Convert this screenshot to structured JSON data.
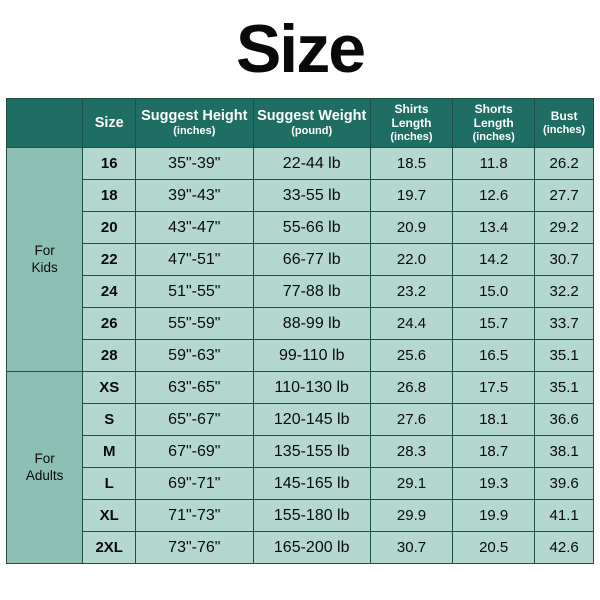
{
  "title": "Size",
  "colors": {
    "header_bg": "#1e6e63",
    "header_text": "#ffffff",
    "group_bg": "#8cc0b5",
    "cell_bg": "#b4d8d0",
    "cell_text": "#0a0a0a",
    "border": "#1e4f48",
    "page_bg": "#ffffff",
    "title_color": "#0a0a0a"
  },
  "fontsizes": {
    "title": 68,
    "header_main": 14.5,
    "header_small": 12,
    "header_sub": 11,
    "size_col": 15,
    "value": 15
  },
  "columns": [
    {
      "label": "Size",
      "sub": "",
      "class": "h-main",
      "width": "9%"
    },
    {
      "label": "Suggest Height",
      "sub": "(inches)",
      "class": "h-main",
      "width": "20%"
    },
    {
      "label": "Suggest Weight",
      "sub": "(pound)",
      "class": "h-main",
      "width": "20%"
    },
    {
      "label": "Shirts Length",
      "sub": "(inches)",
      "class": "",
      "width": "14%"
    },
    {
      "label": "Shorts Length",
      "sub": "(inches)",
      "class": "",
      "width": "14%"
    },
    {
      "label": "Bust",
      "sub": "(inches)",
      "class": "",
      "width": "10%"
    }
  ],
  "groups": [
    {
      "label": "For\nKids",
      "rows": [
        {
          "size": "16",
          "height": "35\"-39\"",
          "weight": "22-44 lb",
          "shirts": "18.5",
          "shorts": "11.8",
          "bust": "26.2"
        },
        {
          "size": "18",
          "height": "39\"-43\"",
          "weight": "33-55 lb",
          "shirts": "19.7",
          "shorts": "12.6",
          "bust": "27.7"
        },
        {
          "size": "20",
          "height": "43\"-47\"",
          "weight": "55-66 lb",
          "shirts": "20.9",
          "shorts": "13.4",
          "bust": "29.2"
        },
        {
          "size": "22",
          "height": "47\"-51\"",
          "weight": "66-77 lb",
          "shirts": "22.0",
          "shorts": "14.2",
          "bust": "30.7"
        },
        {
          "size": "24",
          "height": "51\"-55\"",
          "weight": "77-88 lb",
          "shirts": "23.2",
          "shorts": "15.0",
          "bust": "32.2"
        },
        {
          "size": "26",
          "height": "55\"-59\"",
          "weight": "88-99 lb",
          "shirts": "24.4",
          "shorts": "15.7",
          "bust": "33.7"
        },
        {
          "size": "28",
          "height": "59\"-63\"",
          "weight": "99-110 lb",
          "shirts": "25.6",
          "shorts": "16.5",
          "bust": "35.1"
        }
      ]
    },
    {
      "label": "For\nAdults",
      "rows": [
        {
          "size": "XS",
          "height": "63\"-65\"",
          "weight": "110-130 lb",
          "shirts": "26.8",
          "shorts": "17.5",
          "bust": "35.1"
        },
        {
          "size": "S",
          "height": "65\"-67\"",
          "weight": "120-145 lb",
          "shirts": "27.6",
          "shorts": "18.1",
          "bust": "36.6"
        },
        {
          "size": "M",
          "height": "67\"-69\"",
          "weight": "135-155 lb",
          "shirts": "28.3",
          "shorts": "18.7",
          "bust": "38.1"
        },
        {
          "size": "L",
          "height": "69\"-71\"",
          "weight": "145-165 lb",
          "shirts": "29.1",
          "shorts": "19.3",
          "bust": "39.6"
        },
        {
          "size": "XL",
          "height": "71\"-73\"",
          "weight": "155-180 lb",
          "shirts": "29.9",
          "shorts": "19.9",
          "bust": "41.1"
        },
        {
          "size": "2XL",
          "height": "73\"-76\"",
          "weight": "165-200 lb",
          "shirts": "30.7",
          "shorts": "20.5",
          "bust": "42.6"
        }
      ]
    }
  ],
  "col_widths_pct": [
    13,
    9,
    20,
    20,
    14,
    14,
    10
  ]
}
